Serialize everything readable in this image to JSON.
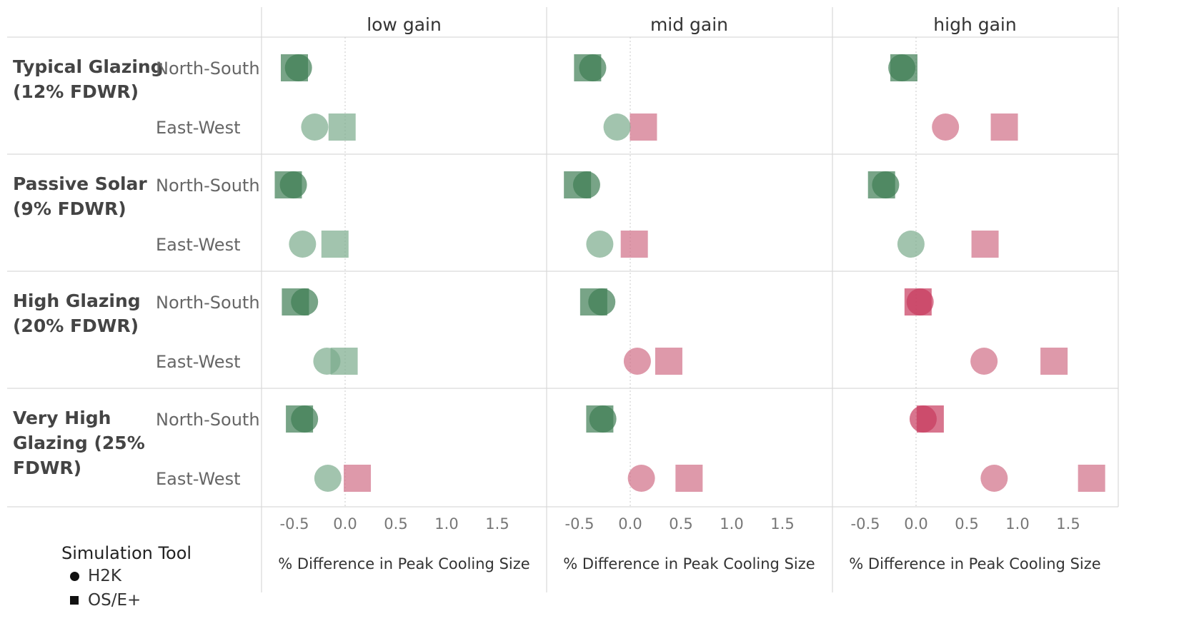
{
  "chart_data": {
    "type": "scatter",
    "columns": [
      "low gain",
      "mid gain",
      "high gain"
    ],
    "rows": [
      {
        "label": "Typical Glazing (12% FDWR)",
        "lines": [
          "Typical Glazing",
          "(12% FDWR)"
        ]
      },
      {
        "label": "Passive Solar (9% FDWR)",
        "lines": [
          "Passive Solar",
          "(9% FDWR)"
        ]
      },
      {
        "label": "High Glazing (20% FDWR)",
        "lines": [
          "High Glazing",
          "(20% FDWR)"
        ]
      },
      {
        "label": "Very High Glazing (25% FDWR)",
        "lines": [
          "Very High",
          "Glazing (25%",
          "FDWR)"
        ]
      }
    ],
    "orientations": [
      "North-South",
      "East-West"
    ],
    "x_ticks": [
      "-0.5",
      "0.0",
      "0.5",
      "1.0",
      "1.5"
    ],
    "x_tick_values": [
      -0.5,
      0,
      0.5,
      1.0,
      1.5
    ],
    "xlim": [
      -0.82,
      1.98
    ],
    "xlabel": "% Difference in Peak Cooling Size",
    "legend": {
      "title": "Simulation Tool",
      "items": [
        {
          "label": "H2K",
          "shape": "circle"
        },
        {
          "label": "OS/E+",
          "shape": "square"
        }
      ]
    },
    "colors": {
      "negative_north_south": "#3e7d54",
      "negative_east_west": "#7bab8c",
      "positive": "#d06d86",
      "positive_north_south": "#c83b5e",
      "zero_line": "#c8c8c8",
      "grid_line": "#d9d9d9"
    },
    "points": [
      {
        "row": 0,
        "orientation": "North-South",
        "column": "low gain",
        "h2k": -0.46,
        "ose": -0.5
      },
      {
        "row": 0,
        "orientation": "East-West",
        "column": "low gain",
        "h2k": -0.3,
        "ose": -0.03
      },
      {
        "row": 0,
        "orientation": "North-South",
        "column": "mid gain",
        "h2k": -0.37,
        "ose": -0.42
      },
      {
        "row": 0,
        "orientation": "East-West",
        "column": "mid gain",
        "h2k": -0.13,
        "ose": 0.13
      },
      {
        "row": 0,
        "orientation": "North-South",
        "column": "high gain",
        "h2k": -0.14,
        "ose": -0.12
      },
      {
        "row": 0,
        "orientation": "East-West",
        "column": "high gain",
        "h2k": 0.29,
        "ose": 0.87
      },
      {
        "row": 1,
        "orientation": "North-South",
        "column": "low gain",
        "h2k": -0.51,
        "ose": -0.56
      },
      {
        "row": 1,
        "orientation": "East-West",
        "column": "low gain",
        "h2k": -0.42,
        "ose": -0.1
      },
      {
        "row": 1,
        "orientation": "North-South",
        "column": "mid gain",
        "h2k": -0.43,
        "ose": -0.52
      },
      {
        "row": 1,
        "orientation": "East-West",
        "column": "mid gain",
        "h2k": -0.3,
        "ose": 0.04
      },
      {
        "row": 1,
        "orientation": "North-South",
        "column": "high gain",
        "h2k": -0.3,
        "ose": -0.34
      },
      {
        "row": 1,
        "orientation": "East-West",
        "column": "high gain",
        "h2k": -0.05,
        "ose": 0.68
      },
      {
        "row": 2,
        "orientation": "North-South",
        "column": "low gain",
        "h2k": -0.4,
        "ose": -0.49
      },
      {
        "row": 2,
        "orientation": "East-West",
        "column": "low gain",
        "h2k": -0.18,
        "ose": -0.01
      },
      {
        "row": 2,
        "orientation": "North-South",
        "column": "mid gain",
        "h2k": -0.28,
        "ose": -0.36
      },
      {
        "row": 2,
        "orientation": "East-West",
        "column": "mid gain",
        "h2k": 0.07,
        "ose": 0.38
      },
      {
        "row": 2,
        "orientation": "North-South",
        "column": "high gain",
        "h2k": 0.04,
        "ose": 0.02
      },
      {
        "row": 2,
        "orientation": "East-West",
        "column": "high gain",
        "h2k": 0.67,
        "ose": 1.36
      },
      {
        "row": 3,
        "orientation": "North-South",
        "column": "low gain",
        "h2k": -0.4,
        "ose": -0.45
      },
      {
        "row": 3,
        "orientation": "East-West",
        "column": "low gain",
        "h2k": -0.17,
        "ose": 0.12
      },
      {
        "row": 3,
        "orientation": "North-South",
        "column": "mid gain",
        "h2k": -0.27,
        "ose": -0.3
      },
      {
        "row": 3,
        "orientation": "East-West",
        "column": "mid gain",
        "h2k": 0.11,
        "ose": 0.58
      },
      {
        "row": 3,
        "orientation": "North-South",
        "column": "high gain",
        "h2k": 0.07,
        "ose": 0.14
      },
      {
        "row": 3,
        "orientation": "East-West",
        "column": "high gain",
        "h2k": 0.77,
        "ose": 1.73
      }
    ]
  }
}
